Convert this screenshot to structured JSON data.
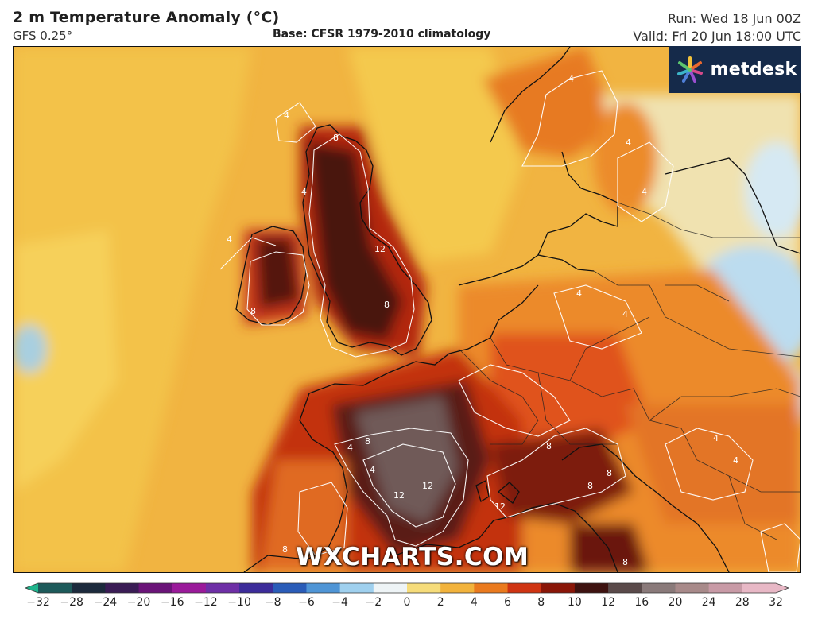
{
  "header": {
    "title": "2 m Temperature Anomaly (°C)",
    "model": "GFS 0.25°",
    "base": "Base: CFSR 1979-2010 climatology",
    "run": "Run: Wed 18 Jun 00Z",
    "valid": "Valid: Fri 20 Jun 18:00 UTC"
  },
  "logo": {
    "text": "metdesk",
    "icon": "metdesk-star-icon"
  },
  "watermark": "WXCHARTS.COM",
  "colorbar": {
    "ticks": [
      "−32",
      "−28",
      "−24",
      "−20",
      "−16",
      "−12",
      "−10",
      "−8",
      "−6",
      "−4",
      "−2",
      "0",
      "2",
      "4",
      "6",
      "8",
      "10",
      "12",
      "16",
      "20",
      "24",
      "28",
      "32"
    ],
    "colors": [
      "#1fb58c",
      "#1d5a5a",
      "#1c2a3c",
      "#3a1c55",
      "#6a1478",
      "#9a1a9a",
      "#6e2fa6",
      "#3c2c9a",
      "#2a5cb8",
      "#4f95d6",
      "#9fd0ee",
      "#eef4f6",
      "#f6dc7a",
      "#f2b33c",
      "#ea7a1e",
      "#cf3412",
      "#8a1608",
      "#3e1210",
      "#5a4a4a",
      "#8a7a7a",
      "#a88a8a",
      "#c89aa6",
      "#e8b8c6"
    ]
  },
  "map_labels": [
    {
      "text": "4"
    },
    {
      "text": "4"
    },
    {
      "text": "8"
    },
    {
      "text": "4"
    },
    {
      "text": "12"
    },
    {
      "text": "8"
    },
    {
      "text": "8"
    },
    {
      "text": "4"
    },
    {
      "text": "4"
    },
    {
      "text": "4"
    },
    {
      "text": "4"
    },
    {
      "text": "4"
    },
    {
      "text": "8"
    },
    {
      "text": "12"
    },
    {
      "text": "12"
    },
    {
      "text": "12"
    },
    {
      "text": "8"
    },
    {
      "text": "8"
    },
    {
      "text": "8"
    },
    {
      "text": "4"
    },
    {
      "text": "4"
    },
    {
      "text": "4"
    },
    {
      "text": "4"
    },
    {
      "text": "8"
    },
    {
      "text": "8"
    }
  ]
}
